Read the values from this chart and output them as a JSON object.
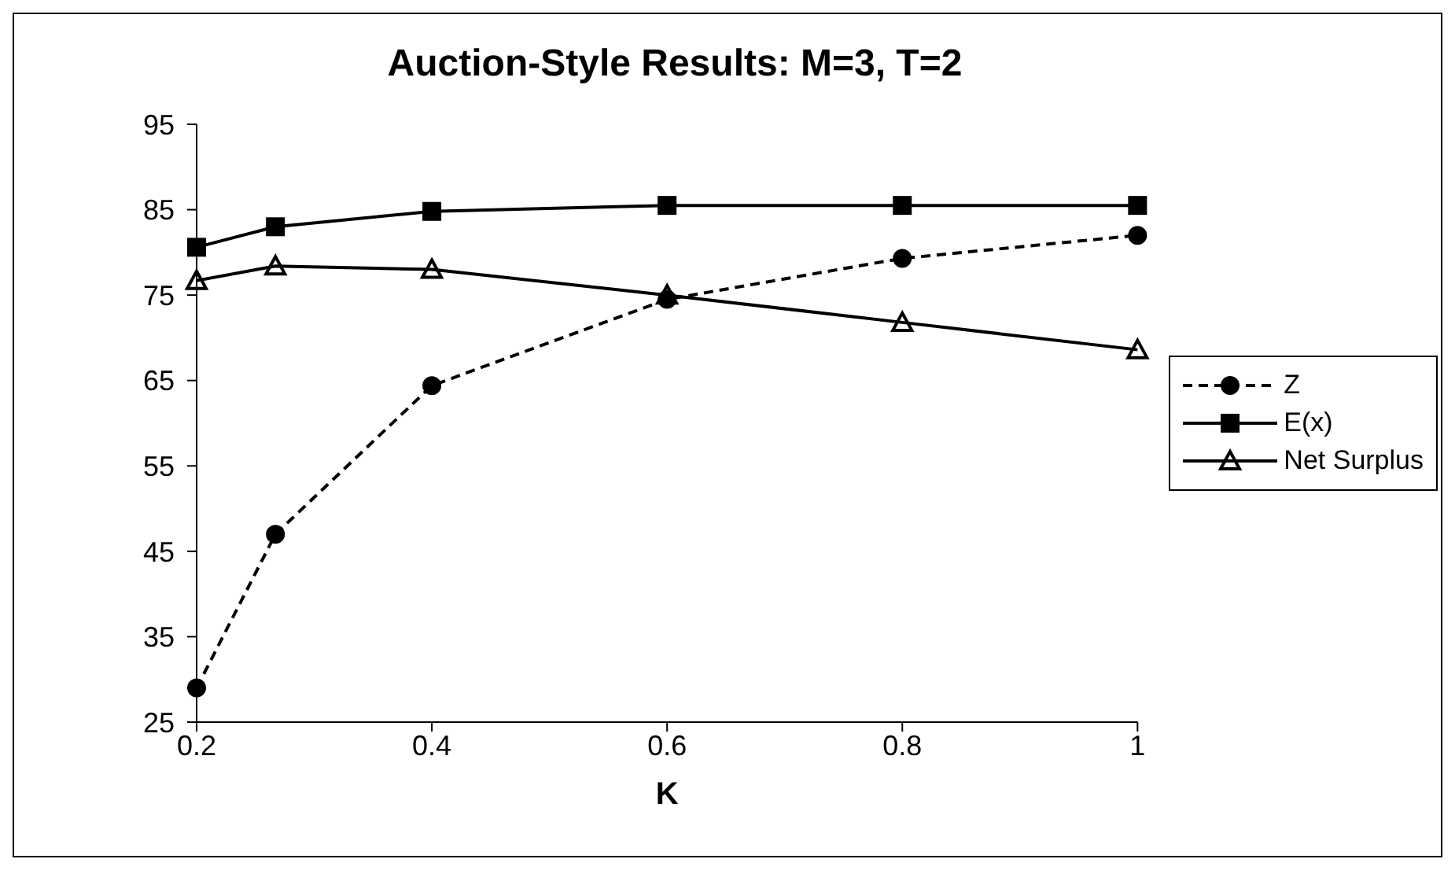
{
  "chart_data": {
    "type": "line",
    "title": "Auction-Style Results:  M=3, T=2",
    "xlabel": "K",
    "x": [
      0.2,
      0.267,
      0.4,
      0.6,
      0.8,
      1
    ],
    "series": [
      {
        "name": "Z",
        "color": "#000000",
        "marker": "circle",
        "line_style": "dashed",
        "values": [
          29,
          47,
          64.4,
          74.5,
          79.3,
          82
        ]
      },
      {
        "name": "E(x)",
        "color": "#000000",
        "marker": "square",
        "line_style": "solid",
        "values": [
          80.6,
          83,
          84.8,
          85.5,
          85.5,
          85.5
        ]
      },
      {
        "name": "Net Surplus",
        "color": "#000000",
        "marker": "triangle",
        "line_style": "solid",
        "values": [
          76.7,
          78.4,
          78,
          75,
          71.8,
          68.6
        ]
      }
    ],
    "xlim": [
      0.2,
      1
    ],
    "xticks": [
      0.2,
      0.4,
      0.6,
      0.8,
      1
    ],
    "ylim": [
      25,
      95
    ],
    "yticks": [
      25,
      35,
      45,
      55,
      65,
      75,
      85,
      95
    ],
    "grid": false,
    "legend": "right"
  }
}
